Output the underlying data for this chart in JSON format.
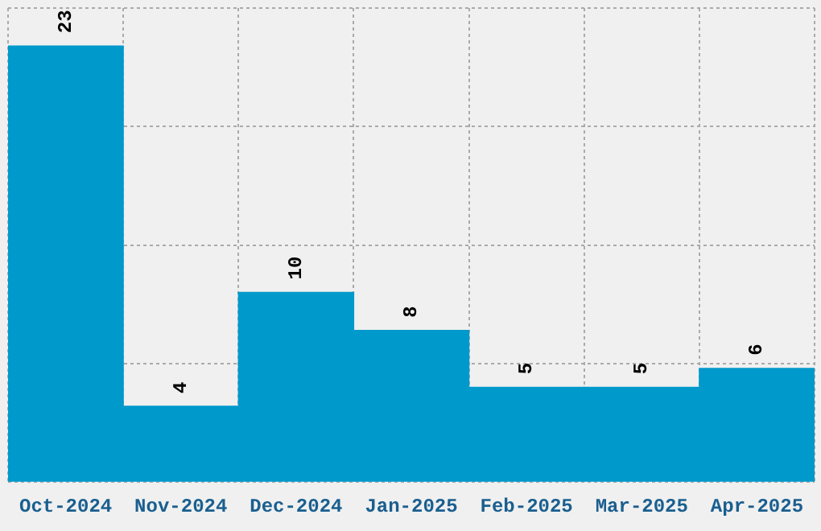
{
  "chart_data": {
    "type": "bar",
    "categories": [
      "Oct-2024",
      "Nov-2024",
      "Dec-2024",
      "Jan-2025",
      "Feb-2025",
      "Mar-2025",
      "Apr-2025"
    ],
    "values": [
      23,
      4,
      10,
      8,
      5,
      5,
      6
    ],
    "color": "#0099cc",
    "ylim": [
      0,
      25
    ],
    "yticks": [
      {
        "value": 0,
        "label": null
      },
      {
        "value": 6.25,
        "label": null
      },
      {
        "value": 12.5,
        "label": null
      },
      {
        "value": 18.75,
        "label": null
      },
      {
        "value": 25,
        "label": null
      }
    ],
    "tick_labels": "x",
    "grid": true,
    "legend": false,
    "data_labels": true
  }
}
